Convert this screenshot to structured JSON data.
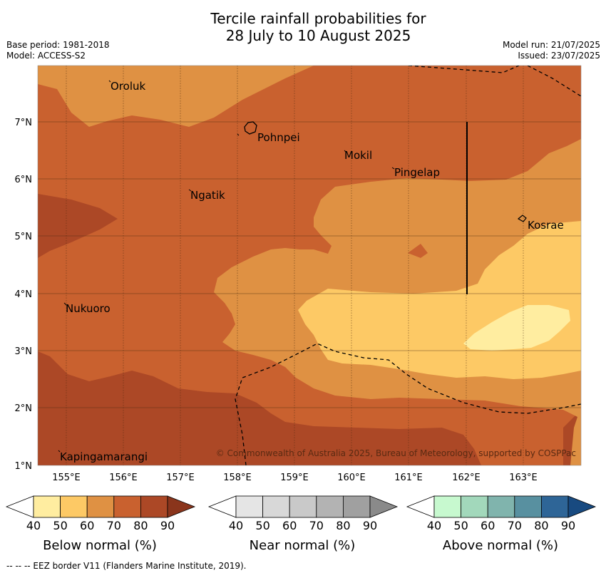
{
  "title_line1": "Tercile rainfall probabilities for",
  "title_line2": "28 July to 10 August 2025",
  "base_period": "Base period: 1981-2018",
  "model": "Model: ACCESS-S2",
  "model_run": "Model run: 21/07/2025",
  "issued": "Issued: 23/07/2025",
  "copyright": "© Commonwealth of Australia 2025, Bureau of Meteorology, supported by COSPPac",
  "lon_ticks": [
    "155°E",
    "156°E",
    "157°E",
    "158°E",
    "159°E",
    "160°E",
    "161°E",
    "162°E",
    "163°E"
  ],
  "lat_ticks": [
    "7°N",
    "6°N",
    "5°N",
    "4°N",
    "3°N",
    "2°N",
    "1°N"
  ],
  "places": [
    "Oroluk",
    "Pohnpei",
    "Mokil",
    "Pingelap",
    "Ngatik",
    "Kosrae",
    "Nukuoro",
    "Kapingamarangi"
  ],
  "colorbars": [
    {
      "label": "Below normal (%)",
      "ticks": [
        "40",
        "50",
        "60",
        "70",
        "80",
        "90"
      ],
      "colors": [
        "#ffeda0",
        "#fdc965",
        "#df9143",
        "#c9612f",
        "#ac4826",
        "#8a351c"
      ]
    },
    {
      "label": "Near normal (%)",
      "ticks": [
        "40",
        "50",
        "60",
        "70",
        "80",
        "90"
      ],
      "colors": [
        "#e5e5e5",
        "#d8d8d8",
        "#c9c9c9",
        "#b3b3b3",
        "#a0a0a0",
        "#8a8a8a"
      ]
    },
    {
      "label": "Above normal (%)",
      "ticks": [
        "40",
        "50",
        "60",
        "70",
        "80",
        "90"
      ],
      "colors": [
        "#c7f9cf",
        "#a2d8bb",
        "#80b4ad",
        "#5890a0",
        "#2e6597",
        "#184a80"
      ]
    }
  ],
  "legend_note": "--  --  -- EEZ border V11 (Flanders Marine Institute, 2019)."
}
